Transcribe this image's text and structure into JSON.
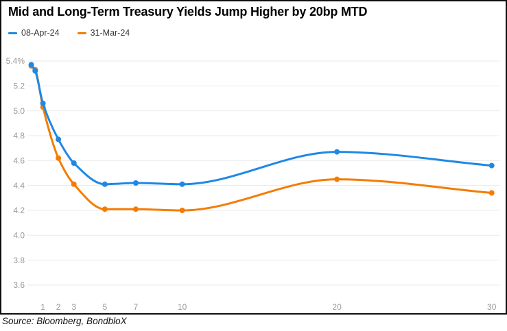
{
  "title": "Mid and Long-Term Treasury Yields Jump Higher by 20bp MTD",
  "source_note": "Source: Bloomberg, BondbloX",
  "legend": {
    "items": [
      {
        "label": "08-Apr-24",
        "color": "#1E88E5"
      },
      {
        "label": "31-Mar-24",
        "color": "#F57C00"
      }
    ]
  },
  "colors": {
    "series_blue": "#1E88E5",
    "series_orange": "#F57C00",
    "gridline": "#E9E9E9",
    "axis_text": "#9A9A9A",
    "border": "#0E0E0E"
  },
  "chart_data": {
    "type": "line",
    "title": "Mid and Long-Term Treasury Yields Jump Higher by 20bp MTD",
    "xlabel": "",
    "ylabel": "",
    "x": [
      0.25,
      0.5,
      1,
      2,
      3,
      5,
      7,
      10,
      20,
      30
    ],
    "series": [
      {
        "name": "08-Apr-24",
        "color": "#1E88E5",
        "values": [
          5.37,
          5.32,
          5.06,
          4.77,
          4.58,
          4.41,
          4.42,
          4.41,
          4.67,
          4.56
        ]
      },
      {
        "name": "31-Mar-24",
        "color": "#F57C00",
        "values": [
          5.36,
          5.33,
          5.03,
          4.62,
          4.41,
          4.21,
          4.21,
          4.2,
          4.45,
          4.34
        ]
      }
    ],
    "y_ticks": {
      "labels": [
        "5.4%",
        "5.2",
        "5.0",
        "4.8",
        "4.6",
        "4.4",
        "4.2",
        "4.0",
        "3.8",
        "3.6"
      ],
      "values": [
        5.4,
        5.2,
        5.0,
        4.8,
        4.6,
        4.4,
        4.2,
        4.0,
        3.8,
        3.6
      ]
    },
    "x_ticks": {
      "labels": [
        "1",
        "2",
        "3",
        "5",
        "7",
        "10",
        "20",
        "30"
      ],
      "values": [
        1,
        2,
        3,
        5,
        7,
        10,
        20,
        30
      ]
    },
    "ylim": [
      3.5,
      5.5
    ],
    "xlim": [
      0,
      30.5
    ],
    "grid": true,
    "legend_position": "top-left",
    "marker": "circle"
  }
}
